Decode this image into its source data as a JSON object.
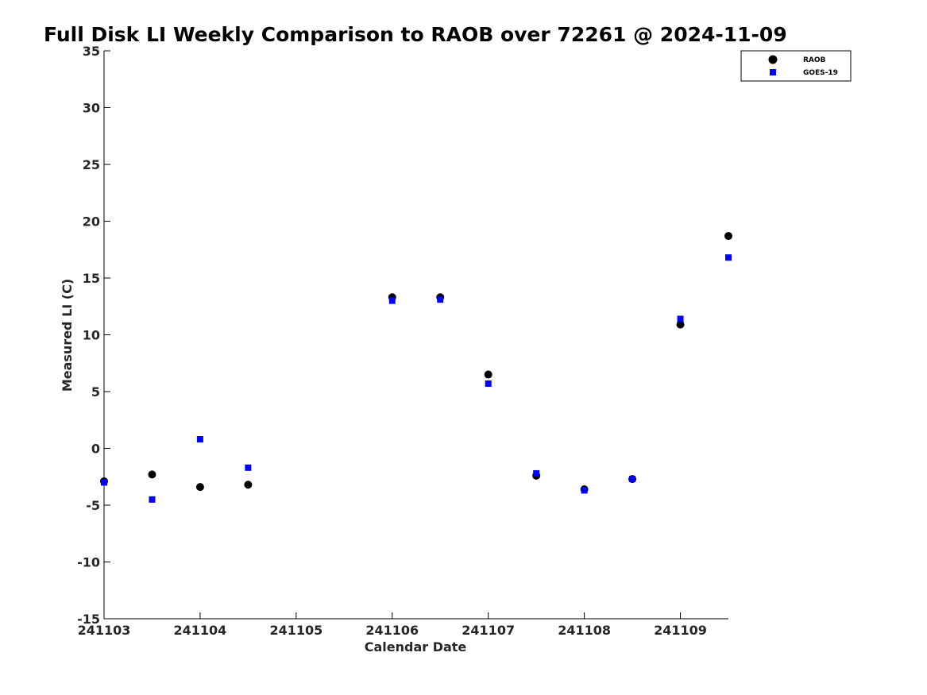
{
  "chart_data": {
    "type": "scatter",
    "title": "Full Disk LI Weekly Comparison to RAOB over 72261 @ 2024-11-09",
    "xlabel": "Calendar Date",
    "ylabel": "Measured LI (C)",
    "xlim": [
      0,
      6.5
    ],
    "ylim": [
      -15,
      35
    ],
    "x_ticks": [
      0,
      1,
      2,
      3,
      4,
      5,
      6
    ],
    "x_tick_labels": [
      "241103",
      "241104",
      "241105",
      "241106",
      "241107",
      "241108",
      "241109"
    ],
    "y_ticks": [
      -15,
      -10,
      -5,
      0,
      5,
      10,
      15,
      20,
      25,
      30,
      35
    ],
    "y_tick_labels": [
      "-15",
      "-10",
      "-5",
      "0",
      "5",
      "10",
      "15",
      "20",
      "25",
      "30",
      "35"
    ],
    "grid": false,
    "legend_position": "top-right",
    "series": [
      {
        "name": "RAOB",
        "marker": "circle",
        "color": "#000000",
        "points": [
          {
            "x": 0.0,
            "y": -2.9
          },
          {
            "x": 0.5,
            "y": -2.3
          },
          {
            "x": 1.0,
            "y": -3.4
          },
          {
            "x": 1.5,
            "y": -3.2
          },
          {
            "x": 3.0,
            "y": 13.3
          },
          {
            "x": 3.5,
            "y": 13.3
          },
          {
            "x": 4.0,
            "y": 6.5
          },
          {
            "x": 4.5,
            "y": -2.4
          },
          {
            "x": 5.0,
            "y": -3.6
          },
          {
            "x": 5.5,
            "y": -2.7
          },
          {
            "x": 6.0,
            "y": 10.9
          },
          {
            "x": 6.5,
            "y": 18.7
          }
        ]
      },
      {
        "name": "GOES-19",
        "marker": "square",
        "color": "#0000ff",
        "points": [
          {
            "x": 0.0,
            "y": -3.0
          },
          {
            "x": 0.5,
            "y": -4.5
          },
          {
            "x": 1.0,
            "y": 0.8
          },
          {
            "x": 1.5,
            "y": -1.7
          },
          {
            "x": 3.0,
            "y": 13.0
          },
          {
            "x": 3.5,
            "y": 13.1
          },
          {
            "x": 4.0,
            "y": 5.7
          },
          {
            "x": 4.5,
            "y": -2.2
          },
          {
            "x": 5.0,
            "y": -3.7
          },
          {
            "x": 5.5,
            "y": -2.7
          },
          {
            "x": 6.0,
            "y": 11.4
          },
          {
            "x": 6.5,
            "y": 16.8
          }
        ]
      }
    ]
  }
}
